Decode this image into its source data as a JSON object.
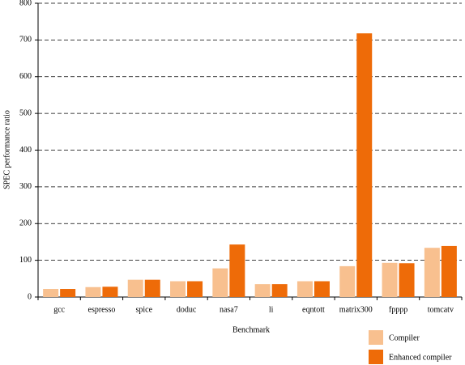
{
  "chart_data": {
    "type": "bar",
    "xlabel": "Benchmark",
    "ylabel": "SPEC performance ratio",
    "categories": [
      "gcc",
      "espresso",
      "spice",
      "doduc",
      "nasa7",
      "li",
      "eqntott",
      "matrix300",
      "fpppp",
      "tomcatv"
    ],
    "series": [
      {
        "name": "Compiler",
        "color": "#f8c08f",
        "values": [
          22,
          27,
          47,
          43,
          78,
          35,
          43,
          84,
          93,
          134
        ]
      },
      {
        "name": "Enhanced compiler",
        "color": "#ee6b08",
        "values": [
          22,
          28,
          47,
          43,
          143,
          35,
          43,
          718,
          92,
          139
        ]
      }
    ],
    "ylim": [
      0,
      800
    ],
    "yticks": [
      0,
      100,
      200,
      300,
      400,
      500,
      600,
      700,
      800
    ],
    "grid": true,
    "legend": "bottom-right"
  }
}
